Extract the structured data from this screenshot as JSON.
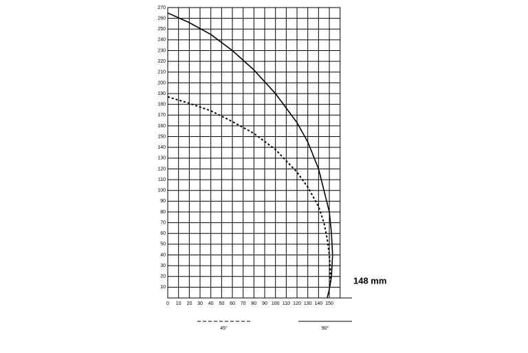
{
  "chart_data": {
    "type": "line",
    "xlim": [
      0,
      160
    ],
    "ylim": [
      0,
      270
    ],
    "xticks": [
      0,
      10,
      20,
      30,
      40,
      50,
      60,
      70,
      80,
      90,
      100,
      110,
      120,
      130,
      140,
      150
    ],
    "yticks": [
      10,
      20,
      30,
      40,
      50,
      60,
      70,
      80,
      90,
      100,
      110,
      120,
      130,
      140,
      150,
      160,
      170,
      180,
      190,
      200,
      210,
      220,
      230,
      240,
      250,
      260,
      270
    ],
    "grid": true,
    "annotation": "148 mm",
    "annotation_color": "#e0192c",
    "series": [
      {
        "name": "45°",
        "color": "#000000",
        "dash": true,
        "x": [
          0,
          20,
          40,
          60,
          80,
          100,
          120,
          130,
          140,
          145,
          148,
          150,
          151,
          151
        ],
        "values": [
          187,
          181,
          174,
          164,
          153,
          138,
          117,
          103,
          85,
          70,
          55,
          40,
          25,
          15
        ]
      },
      {
        "name": "90°",
        "color": "#000000",
        "dash": false,
        "x": [
          0,
          20,
          40,
          60,
          80,
          100,
          120,
          130,
          140,
          145,
          150,
          152,
          153,
          152,
          150,
          148
        ],
        "values": [
          265,
          256,
          245,
          230,
          212,
          190,
          163,
          145,
          120,
          100,
          80,
          60,
          40,
          20,
          8,
          0
        ]
      }
    ]
  }
}
